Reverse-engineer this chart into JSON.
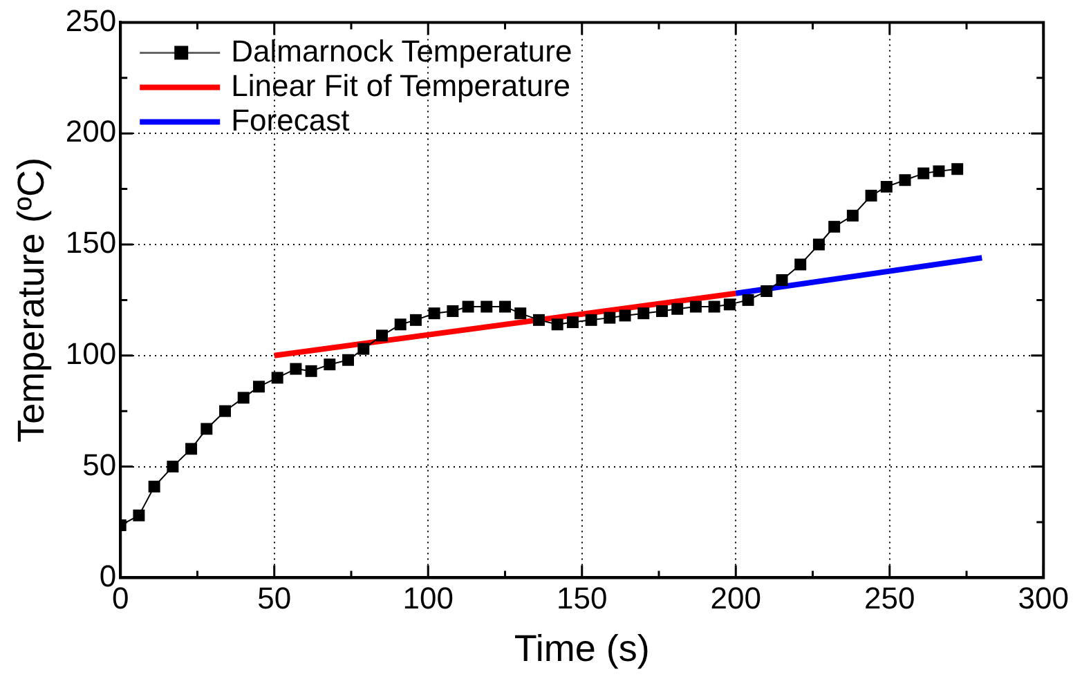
{
  "chart_data": {
    "type": "line",
    "xlabel": "Time (s)",
    "ylabel": "Temperature (ºC)",
    "xlim": [
      0,
      300
    ],
    "xticks": [
      0,
      50,
      100,
      150,
      200,
      250,
      300
    ],
    "ylim": [
      0,
      250
    ],
    "yticks": [
      0,
      50,
      100,
      150,
      200,
      250
    ],
    "grid": true,
    "legend": "top left",
    "series": [
      {
        "name": "Dalmarnock Temperature",
        "color": "#000000",
        "marker": "square",
        "x": [
          0,
          6,
          11,
          17,
          23,
          28,
          34,
          40,
          45,
          51,
          57,
          62,
          68,
          74,
          79,
          85,
          91,
          96,
          102,
          108,
          113,
          119,
          125,
          130,
          136,
          142,
          147,
          153,
          159,
          164,
          170,
          176,
          181,
          187,
          193,
          198,
          204,
          210,
          215,
          221,
          227,
          232,
          238,
          244,
          249,
          255,
          261,
          266,
          272
        ],
        "values": [
          23.6,
          28,
          41,
          50,
          58,
          67,
          75,
          81,
          86,
          90,
          94,
          93,
          96,
          98,
          103,
          109,
          114,
          116,
          119,
          120,
          122,
          122,
          122,
          119,
          116,
          114,
          115,
          116,
          117,
          118,
          119,
          120,
          121,
          122,
          122,
          123,
          125,
          129,
          134,
          141,
          150,
          158,
          163,
          172,
          176,
          179,
          182,
          183,
          184
        ]
      },
      {
        "name": "Linear Fit of Temperature",
        "color": "#ff0000",
        "marker": "none",
        "x": [
          50,
          200
        ],
        "values": [
          100,
          128
        ]
      },
      {
        "name": "Forecast",
        "color": "#0000ff",
        "marker": "none",
        "x": [
          200,
          280
        ],
        "values": [
          128,
          144
        ]
      }
    ]
  }
}
